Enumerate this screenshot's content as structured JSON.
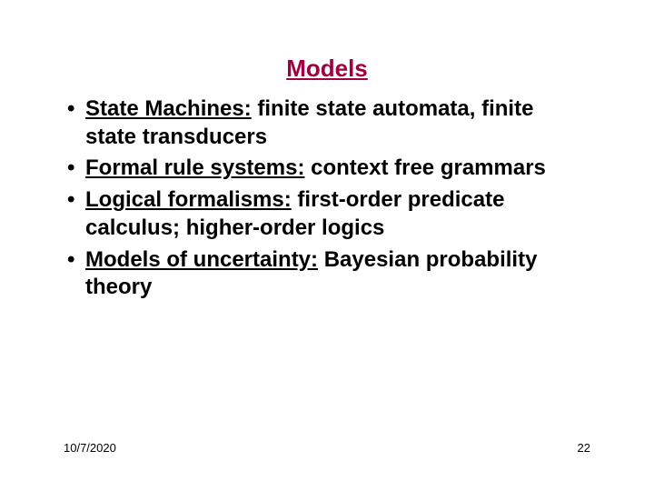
{
  "title": {
    "text": "Models",
    "color": "#a00040",
    "fontsize": 26
  },
  "body": {
    "fontsize": 24,
    "color": "#000000",
    "bullets": [
      {
        "term": "State Machines:",
        "rest": " finite state automata, finite state transducers"
      },
      {
        "term": "Formal rule systems:",
        "rest": " context free grammars"
      },
      {
        "term": "Logical formalisms:",
        "rest": " first-order predicate calculus; higher-order logics"
      },
      {
        "term": "Models of uncertainty:",
        "rest": " Bayesian probability theory"
      }
    ]
  },
  "footer": {
    "date": "10/7/2020",
    "page": "22",
    "fontsize": 13,
    "color": "#000000"
  },
  "background_color": "#ffffff"
}
